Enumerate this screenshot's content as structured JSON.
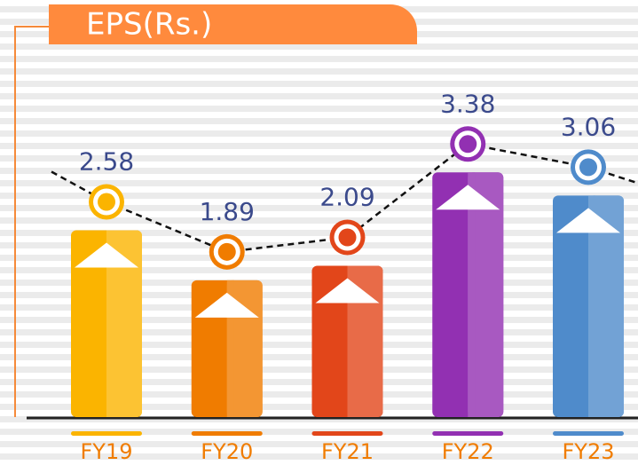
{
  "chart_data": {
    "type": "bar",
    "title": "EPS(Rs.)",
    "categories": [
      "FY19",
      "FY20",
      "FY21",
      "FY22",
      "FY23"
    ],
    "values": [
      2.58,
      1.89,
      2.09,
      3.38,
      3.06
    ],
    "colors": [
      "#fbb400",
      "#f07c00",
      "#e2461a",
      "#9230b2",
      "#4f8bcb"
    ],
    "ylim": [
      0,
      3.8
    ]
  }
}
